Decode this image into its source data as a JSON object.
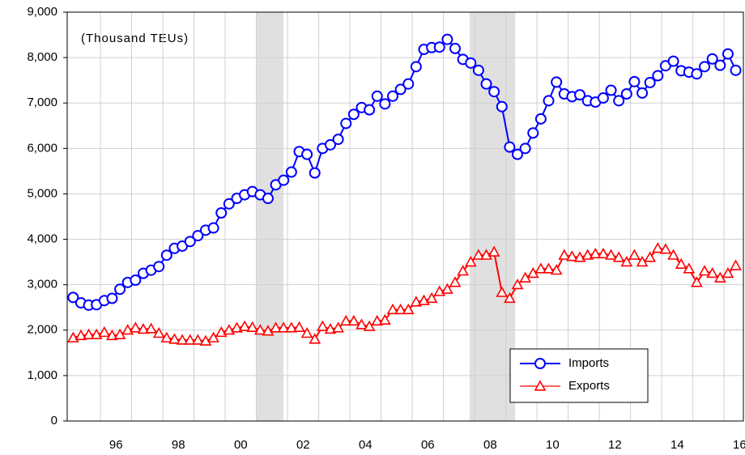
{
  "chart_data": {
    "type": "line",
    "annotation": "(Thousand TEUs)",
    "x": [
      1995.125,
      1995.375,
      1995.625,
      1995.875,
      1996.125,
      1996.375,
      1996.625,
      1996.875,
      1997.125,
      1997.375,
      1997.625,
      1997.875,
      1998.125,
      1998.375,
      1998.625,
      1998.875,
      1999.125,
      1999.375,
      1999.625,
      1999.875,
      2000.125,
      2000.375,
      2000.625,
      2000.875,
      2001.125,
      2001.375,
      2001.625,
      2001.875,
      2002.125,
      2002.375,
      2002.625,
      2002.875,
      2003.125,
      2003.375,
      2003.625,
      2003.875,
      2004.125,
      2004.375,
      2004.625,
      2004.875,
      2005.125,
      2005.375,
      2005.625,
      2005.875,
      2006.125,
      2006.375,
      2006.625,
      2006.875,
      2007.125,
      2007.375,
      2007.625,
      2007.875,
      2008.125,
      2008.375,
      2008.625,
      2008.875,
      2009.125,
      2009.375,
      2009.625,
      2009.875,
      2010.125,
      2010.375,
      2010.625,
      2010.875,
      2011.125,
      2011.375,
      2011.625,
      2011.875,
      2012.125,
      2012.375,
      2012.625,
      2012.875,
      2013.125,
      2013.375,
      2013.625,
      2013.875,
      2014.125,
      2014.375,
      2014.625,
      2014.875,
      2015.125,
      2015.375,
      2015.625,
      2015.875,
      2016.125,
      2016.375
    ],
    "series": [
      {
        "name": "Imports",
        "color": "#0000ff",
        "marker": "circle",
        "values": [
          2720,
          2600,
          2550,
          2560,
          2650,
          2700,
          2900,
          3050,
          3100,
          3250,
          3320,
          3400,
          3650,
          3800,
          3850,
          3950,
          4080,
          4200,
          4250,
          4580,
          4780,
          4900,
          4980,
          5050,
          4980,
          4900,
          5200,
          5300,
          5480,
          5930,
          5870,
          5460,
          6000,
          6080,
          6200,
          6550,
          6750,
          6900,
          6850,
          7150,
          6980,
          7150,
          7300,
          7420,
          7800,
          8180,
          8220,
          8230,
          8400,
          8200,
          7960,
          7880,
          7720,
          7420,
          7250,
          6920,
          6030,
          5870,
          6000,
          6340,
          6650,
          7050,
          7460,
          7200,
          7140,
          7180,
          7050,
          7020,
          7110,
          7280,
          7050,
          7200,
          7470,
          7220,
          7450,
          7600,
          7820,
          7920,
          7710,
          7680,
          7640,
          7800,
          7970,
          7830,
          8080,
          7720
        ]
      },
      {
        "name": "Exports",
        "color": "#ff0000",
        "marker": "triangle",
        "values": [
          1830,
          1880,
          1900,
          1900,
          1950,
          1880,
          1900,
          2000,
          2050,
          2020,
          2030,
          1930,
          1830,
          1800,
          1780,
          1780,
          1780,
          1760,
          1830,
          1950,
          2000,
          2050,
          2080,
          2060,
          2000,
          1980,
          2050,
          2050,
          2050,
          2060,
          1930,
          1800,
          2080,
          2020,
          2050,
          2200,
          2200,
          2120,
          2080,
          2200,
          2220,
          2450,
          2450,
          2450,
          2620,
          2650,
          2700,
          2850,
          2900,
          3050,
          3300,
          3500,
          3650,
          3650,
          3720,
          2830,
          2700,
          3000,
          3150,
          3250,
          3350,
          3350,
          3320,
          3650,
          3620,
          3600,
          3650,
          3680,
          3680,
          3650,
          3600,
          3500,
          3650,
          3500,
          3600,
          3800,
          3780,
          3650,
          3450,
          3350,
          3050,
          3300,
          3250,
          3150,
          3250,
          3420
        ]
      }
    ],
    "xlim": [
      1994.935,
      2016.62
    ],
    "xticks": [
      {
        "value": 1996.5,
        "label": "96"
      },
      {
        "value": 1998.5,
        "label": "98"
      },
      {
        "value": 2000.5,
        "label": "00"
      },
      {
        "value": 2002.5,
        "label": "02"
      },
      {
        "value": 2004.5,
        "label": "04"
      },
      {
        "value": 2006.5,
        "label": "06"
      },
      {
        "value": 2008.5,
        "label": "08"
      },
      {
        "value": 2010.5,
        "label": "10"
      },
      {
        "value": 2012.5,
        "label": "12"
      },
      {
        "value": 2014.5,
        "label": "14"
      },
      {
        "value": 2016.5,
        "label": "16"
      }
    ],
    "x_gridlines": [
      1996,
      1997,
      1998,
      1999,
      2000,
      2001,
      2002,
      2003,
      2004,
      2005,
      2006,
      2007,
      2008,
      2009,
      2010,
      2011,
      2012,
      2013,
      2014,
      2015,
      2016
    ],
    "ylim": [
      0,
      9000
    ],
    "yticks": [
      0,
      {
        "value": 1000,
        "label": "1,000"
      },
      {
        "value": 2000,
        "label": "2,000"
      },
      {
        "value": 3000,
        "label": "3,000"
      },
      {
        "value": 4000,
        "label": "4,000"
      },
      {
        "value": 5000,
        "label": "5,000"
      },
      {
        "value": 6000,
        "label": "6,000"
      },
      {
        "value": 7000,
        "label": "7,000"
      },
      {
        "value": 8000,
        "label": "8,000"
      },
      {
        "value": 9000,
        "label": "9,000"
      }
    ],
    "shaded_periods": [
      [
        2001.0,
        2001.87
      ],
      [
        2007.84,
        2009.3
      ]
    ],
    "shade_color": "#e0e0e0",
    "grid": true,
    "legend": "lower right"
  }
}
